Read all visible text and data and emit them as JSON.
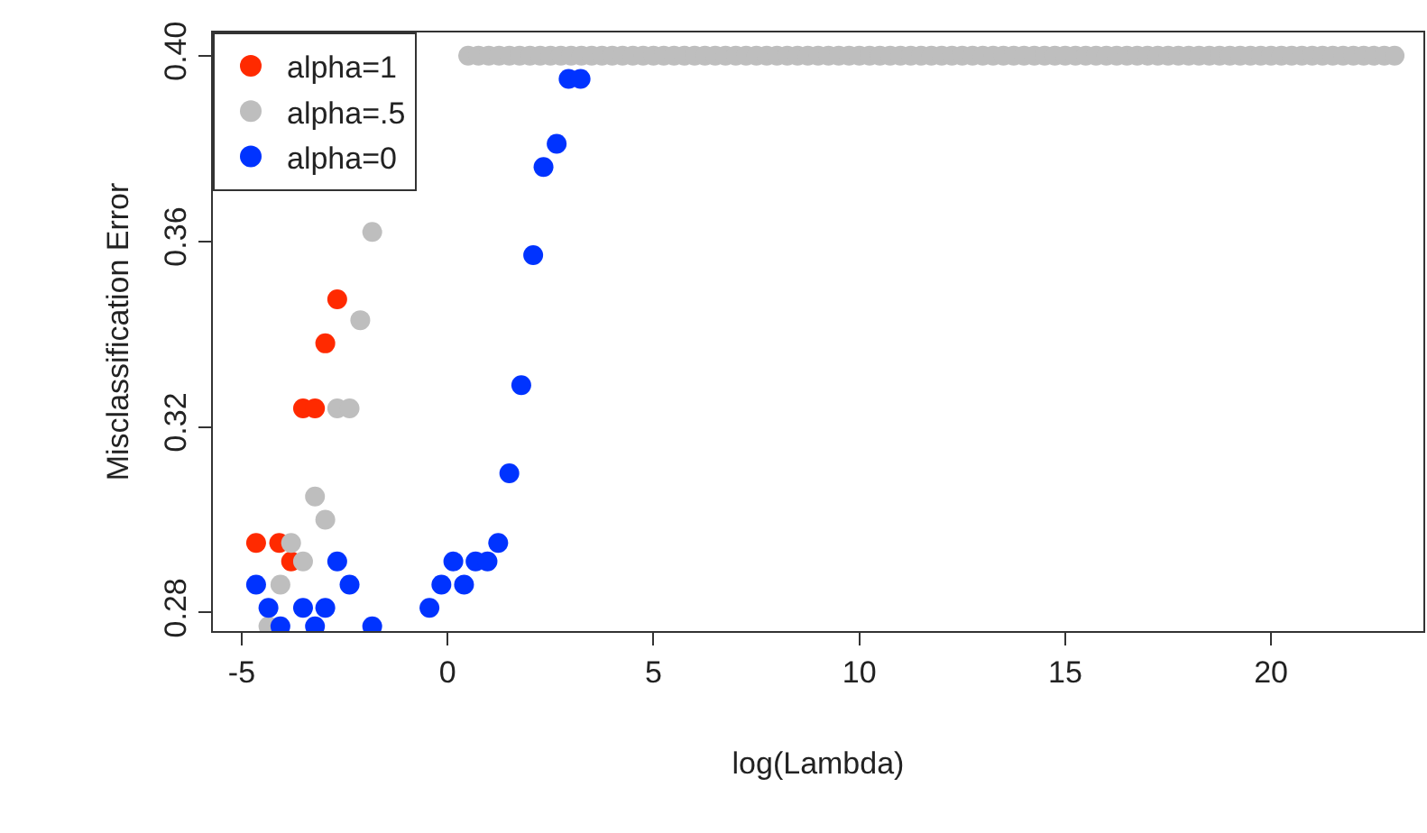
{
  "chart_data": {
    "type": "scatter",
    "xlabel": "log(Lambda)",
    "ylabel": "Misclassification Error",
    "xlim": [
      -5.7,
      23.7
    ],
    "ylim": [
      0.276,
      0.405
    ],
    "xticks": [
      -5,
      0,
      5,
      10,
      15,
      20
    ],
    "yticks": [
      {
        "value": 0.28,
        "label": "0.28"
      },
      {
        "value": 0.32,
        "label": "0.32"
      },
      {
        "value": 0.36,
        "label": "0.36"
      },
      {
        "value": 0.4,
        "label": "0.40"
      }
    ],
    "legend": "top left",
    "marker": "circle",
    "series": [
      {
        "name": "alpha=1",
        "color": "#ff2a00",
        "x": [
          -4.65,
          -4.09,
          -3.8,
          -3.51,
          -3.22,
          -2.97,
          -2.68
        ],
        "values": [
          0.295,
          0.295,
          0.291,
          0.324,
          0.324,
          0.338,
          0.3475
        ]
      },
      {
        "name": "alpha=.5",
        "color": "#bebebe",
        "x": [
          -1.83,
          -2.12,
          -2.68,
          -2.38,
          -3.22,
          -2.97,
          -3.8,
          -3.51,
          -4.06,
          -4.35,
          0.5,
          0.75,
          1.0,
          1.25,
          1.5,
          1.75,
          2.0,
          2.25,
          2.5,
          2.75,
          3.0,
          3.25,
          3.5,
          3.75,
          4.0,
          4.25,
          4.5,
          4.75,
          5.0,
          5.25,
          5.5,
          5.75,
          6.0,
          6.25,
          6.5,
          6.75,
          7.0,
          7.25,
          7.5,
          7.75,
          8.0,
          8.25,
          8.5,
          8.75,
          9.0,
          9.25,
          9.5,
          9.75,
          10.0,
          10.25,
          10.5,
          10.75,
          11.0,
          11.25,
          11.5,
          11.75,
          12.0,
          12.25,
          12.5,
          12.75,
          13.0,
          13.25,
          13.5,
          13.75,
          14.0,
          14.25,
          14.5,
          14.75,
          15.0,
          15.25,
          15.5,
          15.75,
          16.0,
          16.25,
          16.5,
          16.75,
          17.0,
          17.25,
          17.5,
          17.75,
          18.0,
          18.25,
          18.5,
          18.75,
          19.0,
          19.25,
          19.5,
          19.75,
          20.0,
          20.25,
          20.5,
          20.75,
          21.0,
          21.25,
          21.5,
          21.75,
          22.0,
          22.25,
          22.5,
          22.75,
          23.0
        ],
        "values": [
          0.362,
          0.343,
          0.324,
          0.324,
          0.305,
          0.3,
          0.295,
          0.291,
          0.286,
          0.277,
          0.4,
          0.4,
          0.4,
          0.4,
          0.4,
          0.4,
          0.4,
          0.4,
          0.4,
          0.4,
          0.4,
          0.4,
          0.4,
          0.4,
          0.4,
          0.4,
          0.4,
          0.4,
          0.4,
          0.4,
          0.4,
          0.4,
          0.4,
          0.4,
          0.4,
          0.4,
          0.4,
          0.4,
          0.4,
          0.4,
          0.4,
          0.4,
          0.4,
          0.4,
          0.4,
          0.4,
          0.4,
          0.4,
          0.4,
          0.4,
          0.4,
          0.4,
          0.4,
          0.4,
          0.4,
          0.4,
          0.4,
          0.4,
          0.4,
          0.4,
          0.4,
          0.4,
          0.4,
          0.4,
          0.4,
          0.4,
          0.4,
          0.4,
          0.4,
          0.4,
          0.4,
          0.4,
          0.4,
          0.4,
          0.4,
          0.4,
          0.4,
          0.4,
          0.4,
          0.4,
          0.4,
          0.4,
          0.4,
          0.4,
          0.4,
          0.4,
          0.4,
          0.4,
          0.4,
          0.4,
          0.4,
          0.4,
          0.4,
          0.4,
          0.4,
          0.4,
          0.4,
          0.4,
          0.4,
          0.4,
          0.4
        ]
      },
      {
        "name": "alpha=0",
        "color": "#0033ff",
        "x": [
          -4.65,
          -4.35,
          -4.06,
          -3.51,
          -3.22,
          -2.97,
          -2.68,
          -2.38,
          -1.83,
          -0.44,
          -0.15,
          0.14,
          0.4,
          0.68,
          0.97,
          1.23,
          1.5,
          1.79,
          2.08,
          2.33,
          2.65,
          2.94,
          3.23
        ],
        "values": [
          0.286,
          0.281,
          0.277,
          0.281,
          0.277,
          0.281,
          0.291,
          0.286,
          0.277,
          0.281,
          0.286,
          0.291,
          0.286,
          0.291,
          0.291,
          0.295,
          0.31,
          0.329,
          0.357,
          0.376,
          0.381,
          0.395,
          0.395
        ]
      }
    ]
  }
}
